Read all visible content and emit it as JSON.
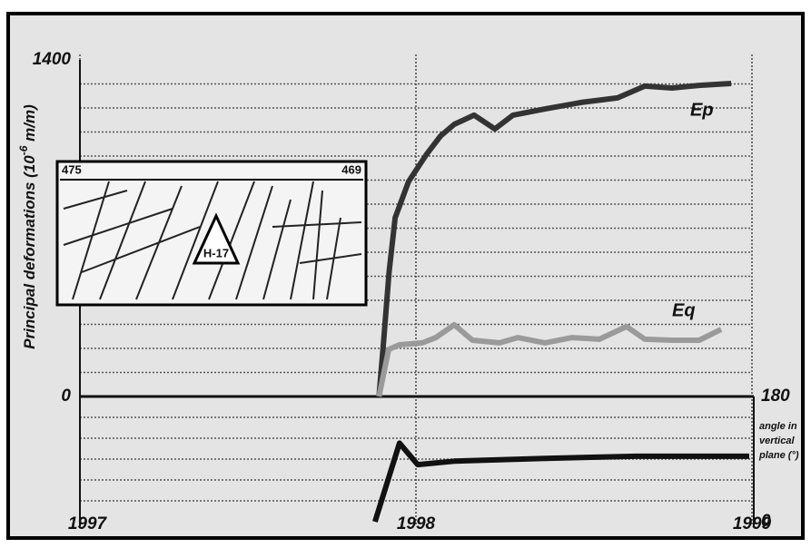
{
  "chart_data": {
    "type": "line",
    "ylabel": "Principal deformations (10",
    "ylabel_exponent": "-6",
    "ylabel_unit": " m/m)",
    "y2label_lines": [
      "angle in",
      "vertical",
      "plane (°)"
    ],
    "xlim": [
      1997,
      1999
    ],
    "xticks": [
      1997,
      1998,
      1999
    ],
    "ylim": [
      0,
      1400
    ],
    "yticks": [
      0,
      1400
    ],
    "y2lim": [
      0,
      180
    ],
    "y2ticks": [
      0,
      180
    ],
    "grid": true,
    "series": [
      {
        "name": "Ep",
        "color": "#333333",
        "x": [
          1997.89,
          1997.903,
          1997.92,
          1997.938,
          1997.978,
          1998.032,
          1998.073,
          1998.114,
          1998.173,
          1998.235,
          1998.289,
          1998.384,
          1998.492,
          1998.6,
          1998.681,
          1998.762,
          1998.843,
          1998.938
        ],
        "values": [
          0,
          215,
          517,
          743,
          894,
          1008,
          1083,
          1132,
          1170,
          1113,
          1170,
          1196,
          1223,
          1242,
          1291,
          1283,
          1294,
          1302
        ]
      },
      {
        "name": "Eq",
        "color": "#9a9a9a",
        "x": [
          1997.89,
          1997.919,
          1997.951,
          1998.019,
          1998.059,
          1998.114,
          1998.168,
          1998.249,
          1998.303,
          1998.384,
          1998.465,
          1998.546,
          1998.627,
          1998.681,
          1998.762,
          1998.843,
          1998.908
        ],
        "values": [
          0,
          196,
          215,
          223,
          245,
          298,
          234,
          223,
          245,
          223,
          245,
          238,
          291,
          238,
          234,
          234,
          279
        ]
      },
      {
        "axis": "y2",
        "color": "#111111",
        "x": [
          1997.878,
          1997.951,
          1998.005,
          1998.114,
          1998.384,
          1998.654,
          1998.992
        ],
        "values": [
          0,
          113,
          82,
          87,
          91,
          94,
          94
        ]
      }
    ],
    "inset": {
      "left_label": "475",
      "right_label": "469",
      "marker_label": "H-17"
    }
  }
}
